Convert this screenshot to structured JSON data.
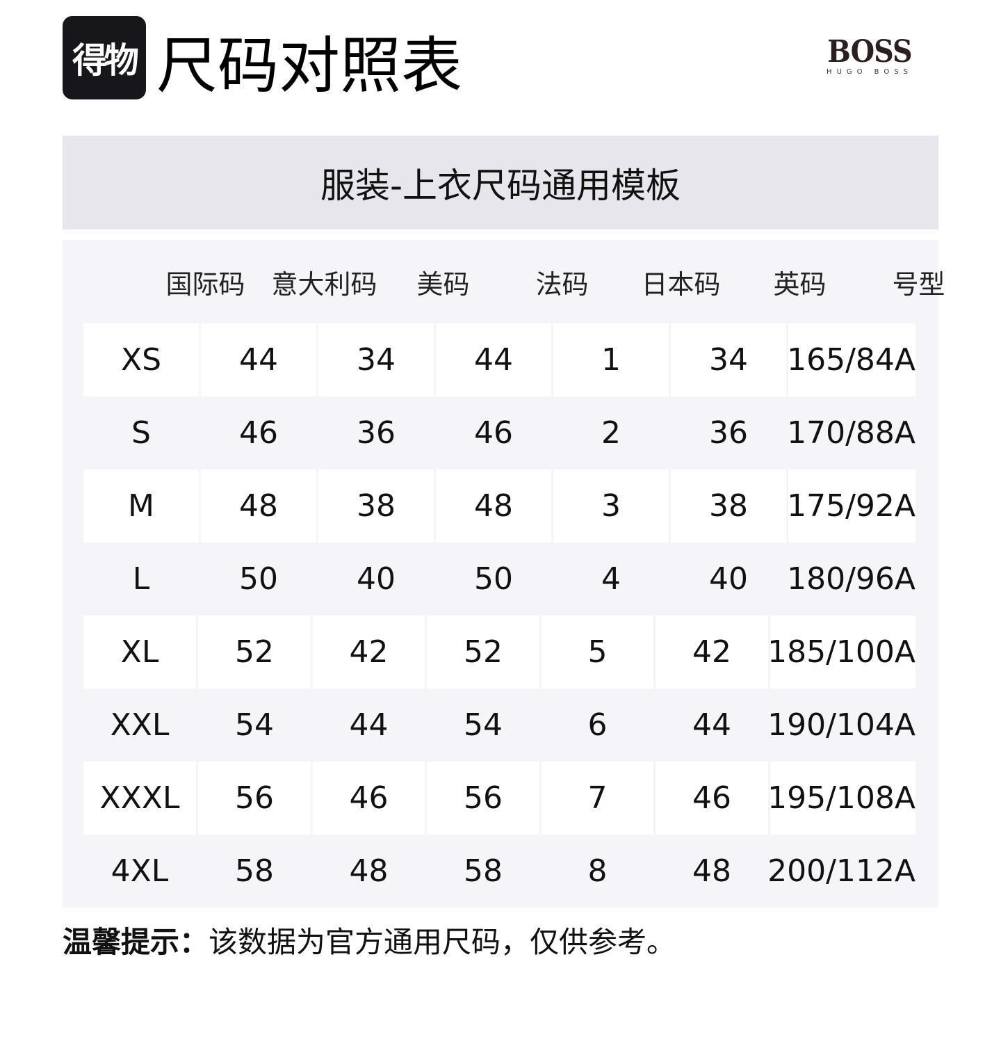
{
  "header": {
    "app_logo": "得物",
    "title": "尺码对照表",
    "brand_logo": "BOSS",
    "brand_sub": "HUGO BOSS"
  },
  "template_title": "服装-上衣尺码通用模板",
  "table": {
    "columns": [
      "国际码",
      "意大利码",
      "美码",
      "法码",
      "日本码",
      "英码",
      "号型"
    ],
    "rows": [
      [
        "XS",
        "44",
        "34",
        "44",
        "1",
        "34",
        "165/84A"
      ],
      [
        "S",
        "46",
        "36",
        "46",
        "2",
        "36",
        "170/88A"
      ],
      [
        "M",
        "48",
        "38",
        "48",
        "3",
        "38",
        "175/92A"
      ],
      [
        "L",
        "50",
        "40",
        "50",
        "4",
        "40",
        "180/96A"
      ],
      [
        "XL",
        "52",
        "42",
        "52",
        "5",
        "42",
        "185/100A"
      ],
      [
        "XXL",
        "54",
        "44",
        "54",
        "6",
        "44",
        "190/104A"
      ],
      [
        "XXXL",
        "56",
        "46",
        "56",
        "7",
        "46",
        "195/108A"
      ],
      [
        "4XL",
        "58",
        "48",
        "58",
        "8",
        "48",
        "200/112A"
      ]
    ]
  },
  "tip": {
    "label": "温馨提示：",
    "text": "该数据为官方通用尺码，仅供参考。"
  }
}
